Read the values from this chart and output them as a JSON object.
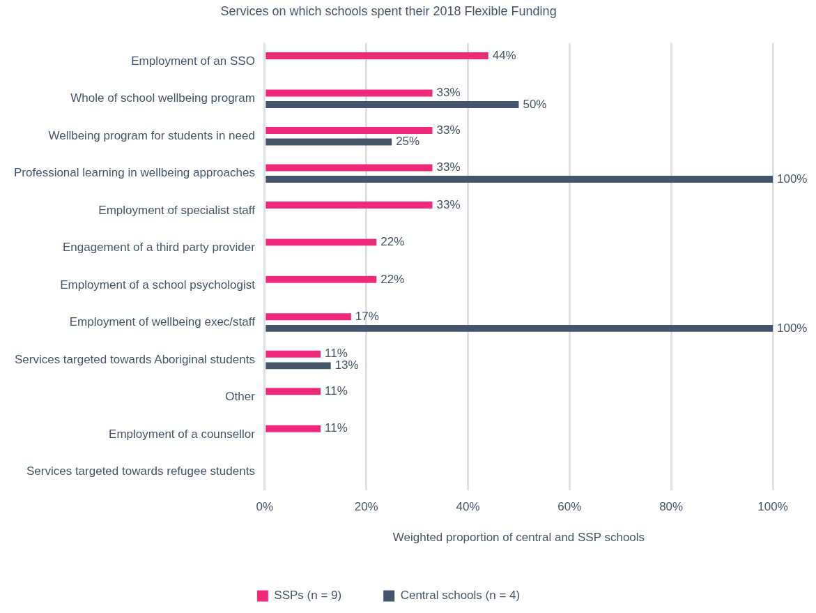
{
  "chart_data": {
    "type": "bar",
    "orientation": "horizontal",
    "title": "Services on which schools spent their 2018 Flexible Funding",
    "xlabel": "Weighted proportion of central and SSP schools",
    "categories": [
      "Employment of an SSO",
      "Whole of school wellbeing program",
      "Wellbeing program for students in need",
      "Professional learning in wellbeing approaches",
      "Employment of specialist staff",
      "Engagement of a third party provider",
      "Employment of a school psychologist",
      "Employment of wellbeing exec/staff",
      "Services targeted towards Aboriginal students",
      "Other",
      "Employment of a counsellor",
      "Services targeted towards refugee students"
    ],
    "series": [
      {
        "name": "SSPs (n = 9)",
        "color": "#f0287a",
        "values": [
          44,
          33,
          33,
          33,
          33,
          22,
          22,
          17,
          11,
          11,
          11,
          null
        ],
        "value_labels": [
          "44%",
          "33%",
          "33%",
          "33%",
          "33%",
          "22%",
          "22%",
          "17%",
          "11%",
          "11%",
          "11%",
          null
        ]
      },
      {
        "name": "Central schools (n = 4)",
        "color": "#44546a",
        "values": [
          null,
          50,
          25,
          100,
          null,
          null,
          null,
          100,
          13,
          null,
          null,
          null
        ],
        "value_labels": [
          null,
          "50%",
          "25%",
          "100%",
          null,
          null,
          null,
          "100%",
          "13%",
          null,
          null,
          null
        ]
      }
    ],
    "xlim": [
      0,
      100
    ],
    "xticks": [
      {
        "value": 0,
        "label": "0%"
      },
      {
        "value": 20,
        "label": "20%"
      },
      {
        "value": 40,
        "label": "40%"
      },
      {
        "value": 60,
        "label": "60%"
      },
      {
        "value": 80,
        "label": "80%"
      },
      {
        "value": 100,
        "label": "100%"
      }
    ],
    "grid": "x",
    "legend": "bottom"
  }
}
